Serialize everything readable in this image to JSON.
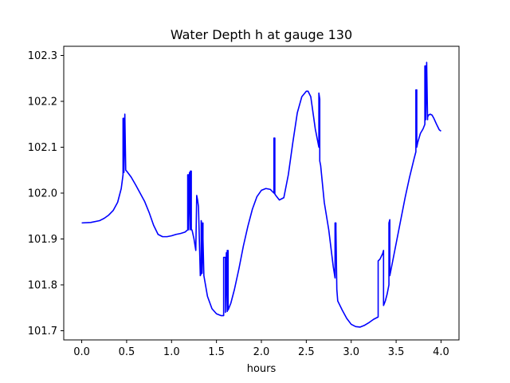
{
  "chart_data": {
    "type": "line",
    "title": "Water Depth h at gauge 130",
    "xlabel": "hours",
    "ylabel": "",
    "xlim": [
      -0.2,
      4.2
    ],
    "ylim": [
      101.68,
      102.32
    ],
    "xticks": [
      "0.0",
      "0.5",
      "1.0",
      "1.5",
      "2.0",
      "2.5",
      "3.0",
      "3.5",
      "4.0"
    ],
    "yticks": [
      "101.7",
      "101.8",
      "101.9",
      "102.0",
      "102.1",
      "102.2",
      "102.3"
    ],
    "grid": false,
    "series": [
      {
        "color": "#0000ff",
        "x": [
          0.0,
          0.1,
          0.2,
          0.25,
          0.3,
          0.35,
          0.4,
          0.44,
          0.46,
          0.46,
          0.47,
          0.47,
          0.48,
          0.48,
          0.49,
          0.49,
          0.5,
          0.55,
          0.6,
          0.65,
          0.7,
          0.75,
          0.8,
          0.85,
          0.9,
          0.95,
          1.0,
          1.05,
          1.1,
          1.15,
          1.18,
          1.18,
          1.19,
          1.19,
          1.2,
          1.2,
          1.21,
          1.21,
          1.22,
          1.22,
          1.23,
          1.25,
          1.27,
          1.28,
          1.29,
          1.3,
          1.32,
          1.33,
          1.33,
          1.34,
          1.34,
          1.35,
          1.35,
          1.36,
          1.4,
          1.45,
          1.5,
          1.55,
          1.58,
          1.58,
          1.6,
          1.6,
          1.61,
          1.61,
          1.62,
          1.62,
          1.63,
          1.63,
          1.64,
          1.66,
          1.7,
          1.75,
          1.8,
          1.85,
          1.9,
          1.95,
          2.0,
          2.05,
          2.1,
          2.14,
          2.14,
          2.15,
          2.15,
          2.16,
          2.2,
          2.25,
          2.3,
          2.35,
          2.4,
          2.45,
          2.5,
          2.52,
          2.55,
          2.6,
          2.64,
          2.64,
          2.65,
          2.65,
          2.66,
          2.7,
          2.75,
          2.8,
          2.82,
          2.82,
          2.83,
          2.83,
          2.84,
          2.85,
          2.9,
          2.95,
          3.0,
          3.05,
          3.1,
          3.15,
          3.2,
          3.25,
          3.3,
          3.3,
          3.32,
          3.35,
          3.36,
          3.36,
          3.38,
          3.4,
          3.42,
          3.42,
          3.43,
          3.43,
          3.44,
          3.5,
          3.55,
          3.6,
          3.65,
          3.7,
          3.72,
          3.72,
          3.73,
          3.73,
          3.74,
          3.77,
          3.8,
          3.82,
          3.82,
          3.83,
          3.83,
          3.84,
          3.84,
          3.85,
          3.85,
          3.86,
          3.88,
          3.9,
          3.92,
          3.95,
          3.98,
          4.0
        ],
        "y": [
          101.935,
          101.936,
          101.94,
          101.945,
          101.952,
          101.962,
          101.98,
          102.01,
          102.04,
          102.163,
          102.163,
          102.045,
          102.172,
          102.172,
          102.05,
          102.05,
          102.048,
          102.035,
          102.018,
          102.0,
          101.982,
          101.958,
          101.93,
          101.91,
          101.905,
          101.905,
          101.907,
          101.91,
          101.912,
          101.915,
          101.92,
          102.04,
          102.04,
          101.92,
          102.045,
          102.045,
          101.92,
          102.048,
          102.048,
          101.922,
          101.918,
          101.9,
          101.875,
          101.995,
          101.985,
          101.97,
          101.82,
          101.825,
          101.94,
          101.93,
          101.825,
          101.935,
          101.9,
          101.82,
          101.775,
          101.748,
          101.737,
          101.733,
          101.733,
          101.86,
          101.86,
          101.74,
          101.87,
          101.87,
          101.742,
          101.875,
          101.875,
          101.745,
          101.75,
          101.76,
          101.79,
          101.835,
          101.885,
          101.928,
          101.965,
          101.992,
          102.006,
          102.01,
          102.008,
          102.0,
          102.12,
          102.12,
          101.998,
          101.995,
          101.985,
          101.99,
          102.04,
          102.11,
          102.175,
          102.21,
          102.222,
          102.222,
          102.21,
          102.14,
          102.1,
          102.218,
          102.205,
          102.07,
          102.06,
          101.98,
          101.92,
          101.84,
          101.815,
          101.935,
          101.935,
          101.92,
          101.79,
          101.765,
          101.745,
          101.727,
          101.714,
          101.709,
          101.708,
          101.712,
          101.718,
          101.725,
          101.73,
          101.852,
          101.856,
          101.868,
          101.875,
          101.755,
          101.765,
          101.78,
          101.8,
          101.935,
          101.942,
          101.82,
          101.83,
          101.89,
          101.94,
          101.99,
          102.035,
          102.075,
          102.09,
          102.225,
          102.225,
          102.1,
          102.11,
          102.13,
          102.14,
          102.15,
          102.277,
          102.277,
          102.16,
          102.285,
          102.285,
          102.16,
          102.165,
          102.17,
          102.172,
          102.17,
          102.163,
          102.15,
          102.138,
          102.135
        ]
      }
    ]
  }
}
